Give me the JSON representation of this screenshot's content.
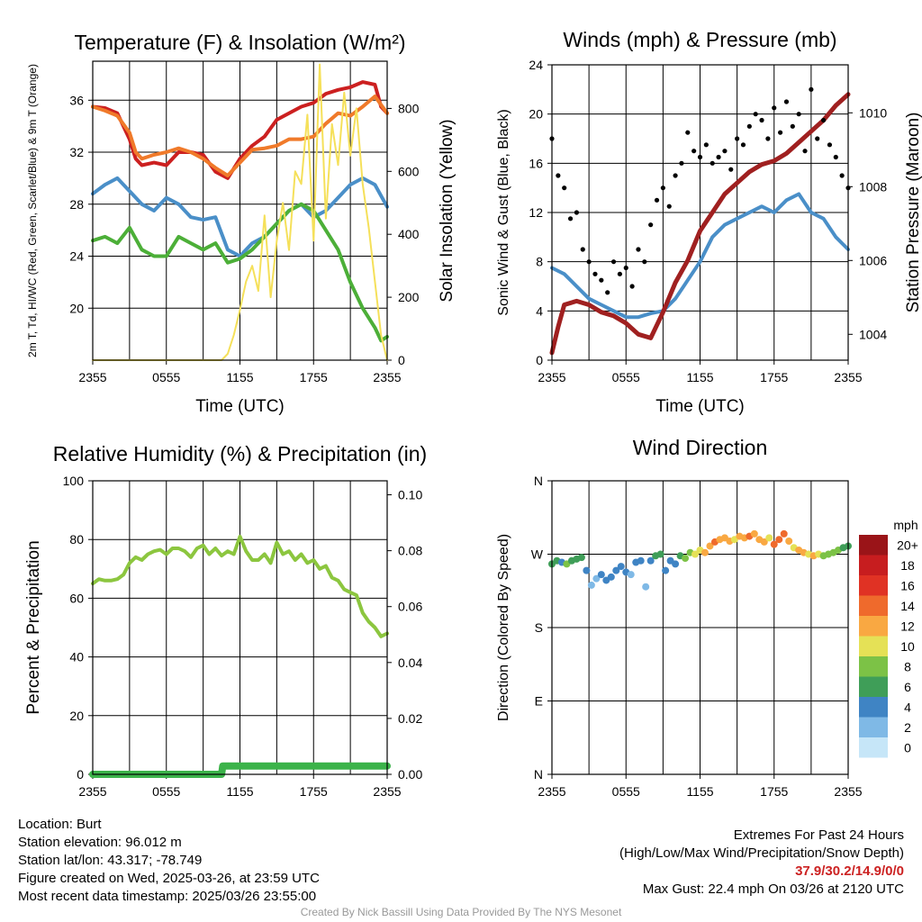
{
  "colors": {
    "red": "#cc2020",
    "orange": "#f07a2a",
    "blue": "#4a8fc8",
    "green": "#4caf38",
    "yellow": "#f5e05a",
    "black": "#000000",
    "maroon": "#a02020",
    "rh": "#8cc63f",
    "precip": "#3cb34a"
  },
  "chart_data": [
    {
      "type": "line",
      "title": "Temperature (F) & Insolation (W/m²)",
      "xlabel": "Time (UTC)",
      "ylabel": "2m T, Td, HI/WC (Red, Green, Scarlet/Blue) & 9m T (Orange)",
      "y2label": "Solar Insolation (Yellow)",
      "xlim": [
        0,
        24
      ],
      "ylim": [
        16,
        39
      ],
      "y2lim": [
        0,
        950
      ],
      "yticks": [
        20,
        24,
        28,
        32,
        36
      ],
      "y2ticks": [
        0,
        200,
        400,
        600,
        800
      ],
      "xticks": [
        "2355",
        "0555",
        "1155",
        "1755",
        "2355"
      ],
      "series": [
        {
          "color": "red",
          "axis": "y",
          "x": [
            0,
            1,
            2,
            3,
            3.5,
            4,
            5,
            6,
            7,
            8,
            9,
            10,
            11,
            12,
            13,
            14,
            15,
            16,
            17,
            18,
            19,
            20,
            21,
            22,
            23,
            23.5,
            24
          ],
          "y": [
            35.5,
            35.4,
            35.0,
            33.0,
            31.5,
            31.0,
            31.2,
            31.0,
            32.0,
            32.0,
            31.8,
            30.5,
            30.0,
            31.5,
            32.5,
            33.2,
            34.5,
            35.0,
            35.5,
            35.8,
            36.5,
            36.8,
            37.0,
            37.4,
            37.2,
            35.5,
            35.0
          ]
        },
        {
          "color": "orange",
          "axis": "y",
          "x": [
            0,
            1,
            2,
            3,
            3.5,
            4,
            5,
            6,
            7,
            8,
            9,
            10,
            11,
            12,
            13,
            14,
            15,
            16,
            17,
            18,
            19,
            20,
            21,
            22,
            23,
            24
          ],
          "y": [
            35.5,
            35.2,
            34.8,
            33.5,
            32.0,
            31.5,
            31.8,
            32.0,
            32.3,
            32.0,
            31.5,
            30.8,
            30.2,
            31.2,
            32.2,
            32.3,
            32.5,
            33.0,
            33.0,
            33.2,
            34.2,
            35.0,
            34.8,
            35.5,
            36.3,
            35.0
          ]
        },
        {
          "color": "blue",
          "axis": "y",
          "x": [
            0,
            1,
            2,
            3,
            4,
            5,
            6,
            7,
            8,
            9,
            10,
            11,
            12,
            13,
            14,
            15,
            16,
            17,
            18,
            19,
            20,
            21,
            22,
            23,
            24
          ],
          "y": [
            28.8,
            29.5,
            30.0,
            29.0,
            28.0,
            27.5,
            28.5,
            28.0,
            27.0,
            26.8,
            27.0,
            24.5,
            24.0,
            25.0,
            25.5,
            26.5,
            27.5,
            28.0,
            27.0,
            27.5,
            28.5,
            29.5,
            30.0,
            29.5,
            27.8
          ]
        },
        {
          "color": "green",
          "axis": "y",
          "x": [
            0,
            1,
            2,
            3,
            4,
            5,
            6,
            7,
            8,
            9,
            10,
            11,
            12,
            13,
            14,
            15,
            16,
            17,
            18,
            19,
            20,
            21,
            22,
            23,
            23.5,
            24
          ],
          "y": [
            25.2,
            25.5,
            25.0,
            26.2,
            24.5,
            24.0,
            24.0,
            25.5,
            25.0,
            24.5,
            25.0,
            23.5,
            23.8,
            24.5,
            25.5,
            26.5,
            27.5,
            28.0,
            27.5,
            26.0,
            24.5,
            22.0,
            20.0,
            18.5,
            17.5,
            17.8
          ]
        },
        {
          "color": "yellow",
          "axis": "y2",
          "x": [
            0,
            10.5,
            11,
            11.5,
            12,
            12.5,
            13,
            13.5,
            14,
            14.5,
            15,
            15.5,
            16,
            16.5,
            17,
            17.5,
            18,
            18.5,
            19,
            19.5,
            20,
            20.5,
            21,
            21.5,
            22,
            22.5,
            23,
            23.5,
            24
          ],
          "y": [
            0,
            0,
            20,
            80,
            160,
            250,
            300,
            220,
            460,
            200,
            380,
            500,
            350,
            600,
            560,
            780,
            380,
            940,
            450,
            750,
            620,
            850,
            650,
            800,
            560,
            420,
            250,
            80,
            0
          ]
        }
      ]
    },
    {
      "type": "line",
      "title": "Winds (mph) & Pressure (mb)",
      "xlabel": "Time (UTC)",
      "ylabel": "Sonic Wind & Gust (Blue, Black)",
      "y2label": "Station Pressure (Maroon)",
      "xlim": [
        0,
        24
      ],
      "ylim": [
        0,
        24
      ],
      "y2lim": [
        1003.3,
        1011.3
      ],
      "yticks": [
        0,
        4,
        8,
        12,
        16,
        20,
        24
      ],
      "y2ticks": [
        1004,
        1006,
        1008,
        1010
      ],
      "xticks": [
        "2355",
        "0555",
        "1155",
        "1755",
        "2355"
      ],
      "series": [
        {
          "color": "blue",
          "axis": "y",
          "x": [
            0,
            1,
            2,
            3,
            4,
            5,
            6,
            7,
            8,
            9,
            10,
            11,
            12,
            13,
            14,
            15,
            16,
            17,
            18,
            19,
            20,
            21,
            22,
            23,
            24
          ],
          "y": [
            7.5,
            7.0,
            6.0,
            5.0,
            4.5,
            4.0,
            3.5,
            3.5,
            3.8,
            4.0,
            5.0,
            6.5,
            8.0,
            10.0,
            11.0,
            11.5,
            12.0,
            12.5,
            12.0,
            13.0,
            13.5,
            12.0,
            11.5,
            10.0,
            9.0
          ]
        },
        {
          "color": "maroon",
          "axis": "y2",
          "x": [
            0,
            0.5,
            1,
            2,
            3,
            4,
            5,
            6,
            7,
            8,
            9,
            10,
            11,
            12,
            13,
            14,
            15,
            16,
            17,
            18,
            19,
            20,
            21,
            22,
            23,
            24
          ],
          "y": [
            1003.5,
            1004.2,
            1004.8,
            1004.9,
            1004.8,
            1004.6,
            1004.5,
            1004.3,
            1004.0,
            1003.9,
            1004.6,
            1005.4,
            1006.0,
            1006.8,
            1007.3,
            1007.8,
            1008.1,
            1008.4,
            1008.6,
            1008.7,
            1008.9,
            1009.2,
            1009.5,
            1009.8,
            1010.2,
            1010.5
          ]
        },
        {
          "color": "black",
          "axis": "y",
          "type": "scatter",
          "x": [
            0,
            0.5,
            1,
            1.5,
            2,
            2.5,
            3,
            3.5,
            4,
            4.5,
            5,
            5.5,
            6,
            6.5,
            7,
            7.5,
            8,
            8.5,
            9,
            9.5,
            10,
            10.5,
            11,
            11.5,
            12,
            12.5,
            13,
            13.5,
            14,
            14.5,
            15,
            15.5,
            16,
            16.5,
            17,
            17.5,
            18,
            18.5,
            19,
            19.5,
            20,
            20.5,
            21,
            21.5,
            22,
            22.5,
            23,
            23.5,
            24
          ],
          "y": [
            18.0,
            15.0,
            14.0,
            11.5,
            12.0,
            9.0,
            8.0,
            7.0,
            6.5,
            5.5,
            8.0,
            7.0,
            7.5,
            6.0,
            9.0,
            8.0,
            11.0,
            13.0,
            14.0,
            12.5,
            15.0,
            16.0,
            18.5,
            17.0,
            16.5,
            17.5,
            16.0,
            16.5,
            17.0,
            15.5,
            18.0,
            17.5,
            19.0,
            20.0,
            19.5,
            18.0,
            20.5,
            18.5,
            21.0,
            19.0,
            20.0,
            17.0,
            22.0,
            18.0,
            19.5,
            17.5,
            16.5,
            15.0,
            14.0
          ]
        }
      ]
    },
    {
      "type": "line",
      "title": "Relative Humidity (%) & Precipitation (in)",
      "ylabel": "Percent & Precipitation",
      "xlim": [
        0,
        24
      ],
      "ylim": [
        0,
        100
      ],
      "y2lim": [
        0,
        0.105
      ],
      "yticks": [
        0,
        20,
        40,
        60,
        80,
        100
      ],
      "y2ticks": [
        "0.00",
        "0.02",
        "0.04",
        "0.06",
        "0.08",
        "0.10"
      ],
      "xticks": [
        "2355",
        "0555",
        "1155",
        "1755",
        "2355"
      ],
      "series": [
        {
          "color": "rh",
          "axis": "y",
          "x": [
            0,
            0.5,
            1,
            1.5,
            2,
            2.5,
            3,
            3.5,
            4,
            4.5,
            5,
            5.5,
            6,
            6.5,
            7,
            7.5,
            8,
            8.5,
            9,
            9.5,
            10,
            10.5,
            11,
            11.5,
            12,
            12.5,
            13,
            13.5,
            14,
            14.5,
            15,
            15.5,
            16,
            16.5,
            17,
            17.5,
            18,
            18.5,
            19,
            19.5,
            20,
            20.5,
            21,
            21.5,
            22,
            22.5,
            23,
            23.5,
            24
          ],
          "y": [
            65,
            66.5,
            66,
            66,
            66.5,
            68,
            72,
            74,
            73,
            75,
            76,
            76.5,
            75,
            77,
            77,
            76,
            74,
            77,
            78,
            75,
            77,
            74.5,
            76,
            75,
            81,
            76,
            73,
            73,
            75,
            72,
            79,
            75,
            76,
            73,
            75,
            72,
            73,
            70,
            71,
            67,
            66,
            63,
            62,
            61,
            55,
            52,
            50,
            47,
            48
          ]
        },
        {
          "color": "precip",
          "axis": "y2",
          "x": [
            0,
            10.5,
            10.6,
            24
          ],
          "y": [
            0.0,
            0.0,
            0.003,
            0.003
          ]
        }
      ]
    },
    {
      "type": "scatter",
      "title": "Wind Direction",
      "ylabel": "Direction (Colored By Speed)",
      "xlim": [
        0,
        24
      ],
      "ylim": [
        0,
        360
      ],
      "yticks": [
        "N",
        "E",
        "S",
        "W",
        "N"
      ],
      "xticks": [
        "2355",
        "0555",
        "1155",
        "1755",
        "2355"
      ],
      "colorbar": {
        "title": "mph",
        "labels": [
          "0",
          "2",
          "4",
          "6",
          "8",
          "10",
          "12",
          "14",
          "16",
          "18",
          "20+"
        ],
        "colors": [
          "#c6e6f8",
          "#7fb9e6",
          "#3f84c4",
          "#3f9e58",
          "#7cc246",
          "#e5e156",
          "#f9a842",
          "#ef6a2c",
          "#e03224",
          "#c71d1f",
          "#9a1418"
        ]
      },
      "x": [
        0,
        0.4,
        0.8,
        1.2,
        1.6,
        2,
        2.4,
        2.8,
        3.2,
        3.6,
        4,
        4.4,
        4.8,
        5.2,
        5.6,
        6,
        6.4,
        6.8,
        7.2,
        7.6,
        8,
        8.4,
        8.8,
        9.2,
        9.6,
        10,
        10.4,
        10.8,
        11.2,
        11.6,
        12,
        12.4,
        12.8,
        13.2,
        13.6,
        14,
        14.4,
        14.8,
        15.2,
        15.6,
        16,
        16.4,
        16.8,
        17.2,
        17.6,
        18,
        18.4,
        18.8,
        19.2,
        19.6,
        20,
        20.4,
        20.8,
        21.2,
        21.6,
        22,
        22.4,
        22.8,
        23.2,
        23.6,
        24
      ],
      "y": [
        258,
        262,
        260,
        258,
        262,
        264,
        266,
        250,
        232,
        240,
        245,
        238,
        242,
        250,
        255,
        248,
        245,
        260,
        262,
        230,
        262,
        268,
        270,
        250,
        262,
        258,
        268,
        265,
        272,
        270,
        275,
        272,
        280,
        285,
        288,
        290,
        286,
        288,
        292,
        290,
        292,
        295,
        288,
        285,
        290,
        282,
        288,
        295,
        286,
        278,
        275,
        272,
        270,
        268,
        270,
        268,
        270,
        272,
        275,
        278,
        280
      ],
      "speed": [
        6,
        7,
        5,
        8,
        7,
        6,
        7,
        4,
        2,
        3,
        4,
        4,
        5,
        4,
        5,
        4,
        3,
        4,
        4,
        2,
        5,
        6,
        7,
        4,
        4,
        4,
        6,
        8,
        9,
        10,
        11,
        12,
        12,
        14,
        12,
        13,
        12,
        11,
        12,
        13,
        14,
        12,
        13,
        12,
        11,
        14,
        15,
        14,
        12,
        11,
        13,
        12,
        10,
        12,
        10,
        9,
        8,
        9,
        8,
        7,
        7
      ]
    }
  ],
  "footer": {
    "location": "Location: Burt",
    "elevation": "Station elevation: 96.012 m",
    "latlon": "Station lat/lon: 43.317; -78.749",
    "created": "Figure created on Wed, 2025-03-26, at 23:59 UTC",
    "recent": "Most recent data timestamp: 2025/03/26 23:55:00",
    "extremes_title": "Extremes For Past 24 Hours",
    "extremes_sub": "(High/Low/Max Wind/Precipitation/Snow Depth)",
    "extremes_values": "37.9/30.2/14.9/0/0",
    "max_gust": "Max Gust: 22.4 mph On 03/26 at 2120 UTC",
    "credit": "Created By Nick Bassill Using Data Provided By The NYS Mesonet"
  }
}
